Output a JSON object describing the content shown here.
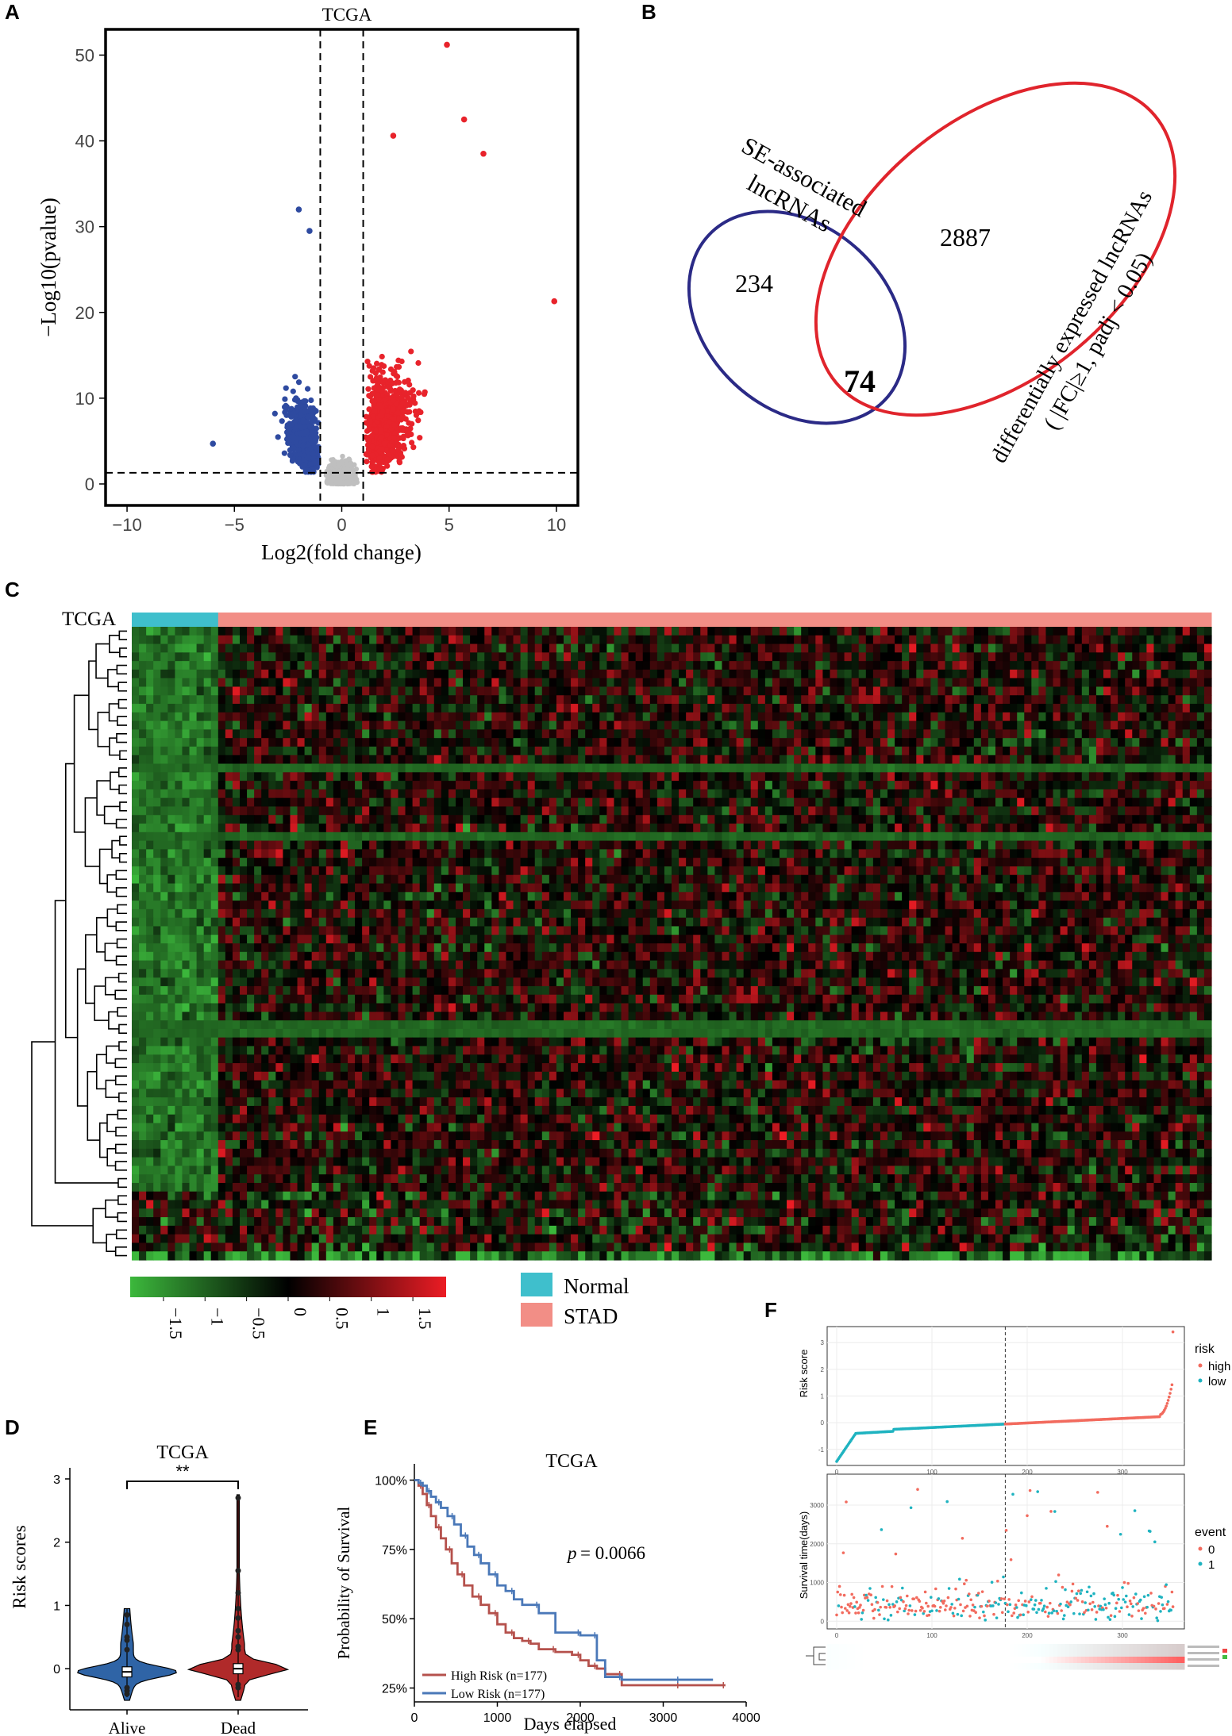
{
  "colors": {
    "up": "#e8232b",
    "down": "#2e4aa0",
    "ns": "#bfbfbf",
    "venn_se": "#2b2a86",
    "venn_de": "#e0242c",
    "normal_bar": "#3fbfcc",
    "stad_bar": "#f28e86",
    "heat_low": "#3cb83c",
    "heat_mid": "#000000",
    "heat_high": "#ec1c24",
    "violin_alive": "#2f64a6",
    "violin_dead": "#b02a2a",
    "km_high": "#b5514c",
    "km_low": "#4a78b8",
    "risk_high": "#f26b5e",
    "risk_low": "#1fb3c0"
  },
  "chart_data": [
    {
      "panel": "A",
      "type": "scatter",
      "title": "TCGA",
      "xlabel": "Log2(fold change)",
      "ylabel": "−Log10(pvalue)",
      "xlim": [
        -11,
        11
      ],
      "ylim": [
        -2.5,
        53
      ],
      "x_ticks": [
        "−10",
        "−5",
        "0",
        "5",
        "10"
      ],
      "x_tick_values": [
        -10,
        -5,
        0,
        5,
        10
      ],
      "y_ticks": [
        "0",
        "10",
        "20",
        "30",
        "40",
        "50"
      ],
      "y_tick_values": [
        0,
        10,
        20,
        30,
        40,
        50
      ],
      "thresholds": {
        "fold_change": [
          -1,
          1
        ],
        "neg_log10_p": 1.3
      },
      "labeled_outliers": [
        {
          "x": 4.9,
          "y": 51.2,
          "group": "up"
        },
        {
          "x": 5.7,
          "y": 42.5,
          "group": "up"
        },
        {
          "x": 6.6,
          "y": 38.5,
          "group": "up"
        },
        {
          "x": 9.9,
          "y": 21.3,
          "group": "up"
        },
        {
          "x": 2.4,
          "y": 40.6,
          "group": "up"
        },
        {
          "x": -2.0,
          "y": 32.0,
          "group": "down"
        },
        {
          "x": -6.0,
          "y": 4.7,
          "group": "down"
        },
        {
          "x": -1.5,
          "y": 29.5,
          "group": "down"
        }
      ]
    },
    {
      "panel": "B",
      "type": "venn",
      "sets": [
        {
          "label_lines": [
            "SE-associated",
            "lncRNAs"
          ],
          "only": 234
        },
        {
          "label_lines": [
            "differentially expressed lncRNAs",
            "( |FC|≥1, padj < 0.05)"
          ],
          "only": 2887
        }
      ],
      "intersection": 74
    },
    {
      "panel": "C",
      "type": "heatmap",
      "row_label": "TCGA",
      "groups": [
        {
          "name": "Normal",
          "fraction": 0.08
        },
        {
          "name": "STAD",
          "fraction": 0.92
        }
      ],
      "legend_ticks": [
        "−1.5",
        "−1",
        "−0.5",
        "0",
        "0.5",
        "1",
        "1.5"
      ],
      "legend_tick_values": [
        -1.5,
        -1,
        -0.5,
        0,
        0.5,
        1,
        1.5
      ],
      "legend_range": [
        -1.9,
        1.9
      ],
      "n_rows": 74,
      "n_cols": 150
    },
    {
      "panel": "D",
      "type": "violin",
      "title": "TCGA",
      "ylabel": "Risk scores",
      "categories": [
        "Alive",
        "Dead"
      ],
      "medians": [
        -0.05,
        0.0
      ],
      "ylim": [
        -0.65,
        3.05
      ],
      "y_ticks": [
        "0",
        "1",
        "2",
        "3"
      ],
      "y_tick_values": [
        0,
        1,
        2,
        3
      ],
      "significance": "**",
      "outliers_alive": [
        0.85,
        0.7,
        0.5,
        0.45,
        0.3,
        -0.3,
        -0.35,
        -0.4
      ],
      "outliers_dead": [
        2.7,
        1.55,
        1.2,
        0.95,
        0.8,
        0.6,
        0.5,
        0.35,
        0.3,
        -0.25,
        -0.3
      ]
    },
    {
      "panel": "E",
      "type": "line",
      "title": "TCGA",
      "xlabel": "Days elapsed",
      "ylabel": "Probability of Survival",
      "xlim": [
        0,
        4000
      ],
      "ylim": [
        0.2,
        1.03
      ],
      "x_ticks": [
        "0",
        "1000",
        "2000",
        "3000",
        "4000"
      ],
      "x_tick_values": [
        0,
        1000,
        2000,
        3000,
        4000
      ],
      "y_ticks": [
        "25%",
        "50%",
        "75%",
        "100%"
      ],
      "y_tick_values": [
        0.25,
        0.5,
        0.75,
        1.0
      ],
      "pvalue": "= 0.0066",
      "pvalue_symbol": "p",
      "series": [
        {
          "name": "High Risk (n=177)",
          "x": [
            0,
            50,
            100,
            150,
            200,
            260,
            320,
            380,
            450,
            520,
            600,
            700,
            800,
            900,
            1000,
            1100,
            1200,
            1300,
            1400,
            1500,
            1700,
            1900,
            2000,
            2100,
            2200,
            2300,
            2500,
            2800,
            3200,
            3600,
            3750
          ],
          "y": [
            1.0,
            0.98,
            0.95,
            0.91,
            0.87,
            0.83,
            0.79,
            0.75,
            0.7,
            0.66,
            0.62,
            0.58,
            0.55,
            0.52,
            0.48,
            0.45,
            0.43,
            0.42,
            0.41,
            0.39,
            0.38,
            0.37,
            0.35,
            0.33,
            0.32,
            0.3,
            0.26,
            0.26,
            0.26,
            0.26,
            0.26
          ]
        },
        {
          "name": "Low Risk (n=177)",
          "x": [
            0,
            50,
            100,
            150,
            200,
            260,
            320,
            400,
            480,
            560,
            640,
            720,
            800,
            900,
            1000,
            1100,
            1200,
            1300,
            1500,
            1700,
            2000,
            2100,
            2200,
            2300,
            2500,
            2800,
            3200,
            3600
          ],
          "y": [
            1.0,
            0.99,
            0.98,
            0.96,
            0.94,
            0.92,
            0.9,
            0.87,
            0.84,
            0.8,
            0.76,
            0.73,
            0.7,
            0.66,
            0.62,
            0.6,
            0.57,
            0.55,
            0.52,
            0.45,
            0.44,
            0.44,
            0.35,
            0.29,
            0.28,
            0.28,
            0.28,
            0.28
          ]
        }
      ]
    },
    {
      "panel": "F",
      "type": "scatter",
      "subplots": [
        {
          "ylabel": "Risk score",
          "legend_title": "risk",
          "legend": [
            "high",
            "low"
          ],
          "x_ticks": [
            "0",
            "100",
            "200",
            "300"
          ],
          "x_tick_values": [
            0,
            100,
            200,
            300
          ],
          "y_ticks": [
            "-1",
            "0",
            "1",
            "2",
            "3"
          ],
          "y_tick_values": [
            -1,
            0,
            1,
            2,
            3
          ],
          "xlim": [
            -10,
            365
          ],
          "ylim": [
            -1.6,
            3.6
          ],
          "cutoff_index": 177,
          "n": 354
        },
        {
          "ylabel": "Survival time(days)",
          "legend_title": "event",
          "legend": [
            "0",
            "1"
          ],
          "x_ticks": [
            "0",
            "100",
            "200",
            "300"
          ],
          "x_tick_values": [
            0,
            100,
            200,
            300
          ],
          "y_ticks": [
            "0",
            "1000",
            "2000",
            "3000"
          ],
          "y_tick_values": [
            0,
            1000,
            2000,
            3000
          ],
          "xlim": [
            -10,
            365
          ],
          "ylim": [
            -200,
            3800
          ],
          "cutoff_index": 177
        }
      ]
    }
  ]
}
